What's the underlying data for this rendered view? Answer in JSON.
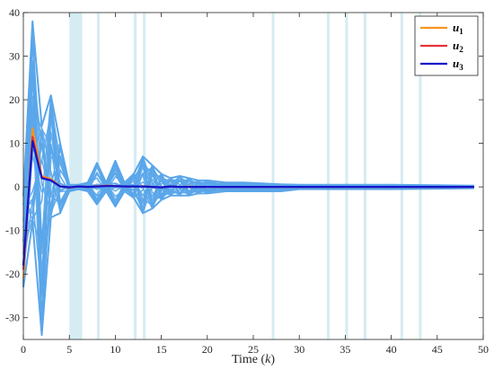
{
  "chart_data": {
    "type": "line",
    "title": "",
    "xlabel": "Time",
    "xlabel_var": "k",
    "ylabel": "",
    "xlim": [
      0,
      50
    ],
    "ylim": [
      -35,
      40
    ],
    "xticks": [
      0,
      5,
      10,
      15,
      20,
      25,
      30,
      35,
      40,
      45,
      50
    ],
    "yticks": [
      -30,
      -20,
      -10,
      0,
      10,
      20,
      30,
      40
    ],
    "grid": false,
    "legend_position": "top-right",
    "shaded_intervals_k": [
      [
        5,
        6.4
      ],
      [
        8,
        8.3
      ],
      [
        12,
        12.3
      ],
      [
        13,
        13.3
      ],
      [
        27,
        27.3
      ],
      [
        33,
        33.3
      ],
      [
        35,
        35.3
      ],
      [
        37,
        37.3
      ],
      [
        41,
        41.3
      ],
      [
        43,
        43.3
      ]
    ],
    "shade_color": "#d6ecf3",
    "ensemble_color": "#5aa6ea",
    "ensemble_envelope": {
      "x": [
        0,
        1,
        2,
        3,
        4,
        5,
        6,
        7,
        8,
        9,
        10,
        11,
        12,
        13,
        14,
        15,
        16,
        17,
        18,
        19,
        20,
        22,
        24,
        26,
        28,
        30,
        35,
        40,
        45,
        49
      ],
      "upper": [
        -2,
        38,
        14,
        21,
        10,
        0.5,
        0.5,
        1,
        5.5,
        1,
        6,
        1,
        3,
        7,
        5,
        3,
        2,
        2.5,
        2,
        1.5,
        1.5,
        1,
        1,
        0.8,
        0.6,
        0.5,
        0.5,
        0.5,
        0.4,
        0.3
      ],
      "lower": [
        -23,
        -8,
        -34,
        -7,
        -6,
        -1,
        -0.5,
        -1,
        -4,
        -1,
        -4.5,
        -1,
        -2.5,
        -6,
        -5,
        -3,
        -2,
        -2,
        -2,
        -1.5,
        -1.5,
        -1,
        -1,
        -1,
        -1,
        -0.5,
        -0.5,
        -0.5,
        -0.4,
        -0.3
      ]
    },
    "series": [
      {
        "name": "u",
        "subscript": "1",
        "color": "#f7931e",
        "x": [
          0,
          1,
          2,
          3,
          4,
          5,
          6,
          7,
          8,
          9,
          10,
          11,
          12,
          13,
          14,
          15,
          16,
          17,
          18,
          19,
          20,
          25,
          30,
          35,
          40,
          45,
          49
        ],
        "y": [
          -21,
          13.5,
          2.5,
          1.8,
          0.2,
          -0.2,
          0.1,
          0,
          0.2,
          0.3,
          0.2,
          0.1,
          0.1,
          0.2,
          0,
          -0.1,
          0.1,
          0,
          0.1,
          0,
          0,
          0,
          0,
          0,
          0,
          0,
          0
        ]
      },
      {
        "name": "u",
        "subscript": "2",
        "color": "#e8303a",
        "x": [
          0,
          1,
          2,
          3,
          4,
          5,
          6,
          7,
          8,
          9,
          10,
          11,
          12,
          13,
          14,
          15,
          16,
          17,
          18,
          19,
          20,
          25,
          30,
          35,
          40,
          45,
          49
        ],
        "y": [
          -19,
          11.5,
          2.2,
          1.6,
          0.1,
          -0.1,
          0.1,
          0,
          0.1,
          0.3,
          0.2,
          0.1,
          0.1,
          0.1,
          0,
          -0.1,
          0.1,
          0,
          0,
          0,
          0,
          0,
          0,
          0,
          0,
          0,
          0
        ]
      },
      {
        "name": "u",
        "subscript": "3",
        "color": "#1414c8",
        "x": [
          0,
          1,
          2,
          3,
          4,
          5,
          6,
          7,
          8,
          9,
          10,
          11,
          12,
          13,
          14,
          15,
          16,
          17,
          18,
          19,
          20,
          25,
          30,
          35,
          40,
          45,
          49
        ],
        "y": [
          -18,
          10.5,
          2.0,
          1.5,
          0.1,
          -0.1,
          0.1,
          0,
          0.1,
          0.2,
          0.2,
          0.1,
          0.1,
          0.1,
          0,
          -0.1,
          0.1,
          0,
          0,
          0,
          0,
          0,
          0,
          0,
          0,
          0,
          0
        ]
      }
    ]
  }
}
